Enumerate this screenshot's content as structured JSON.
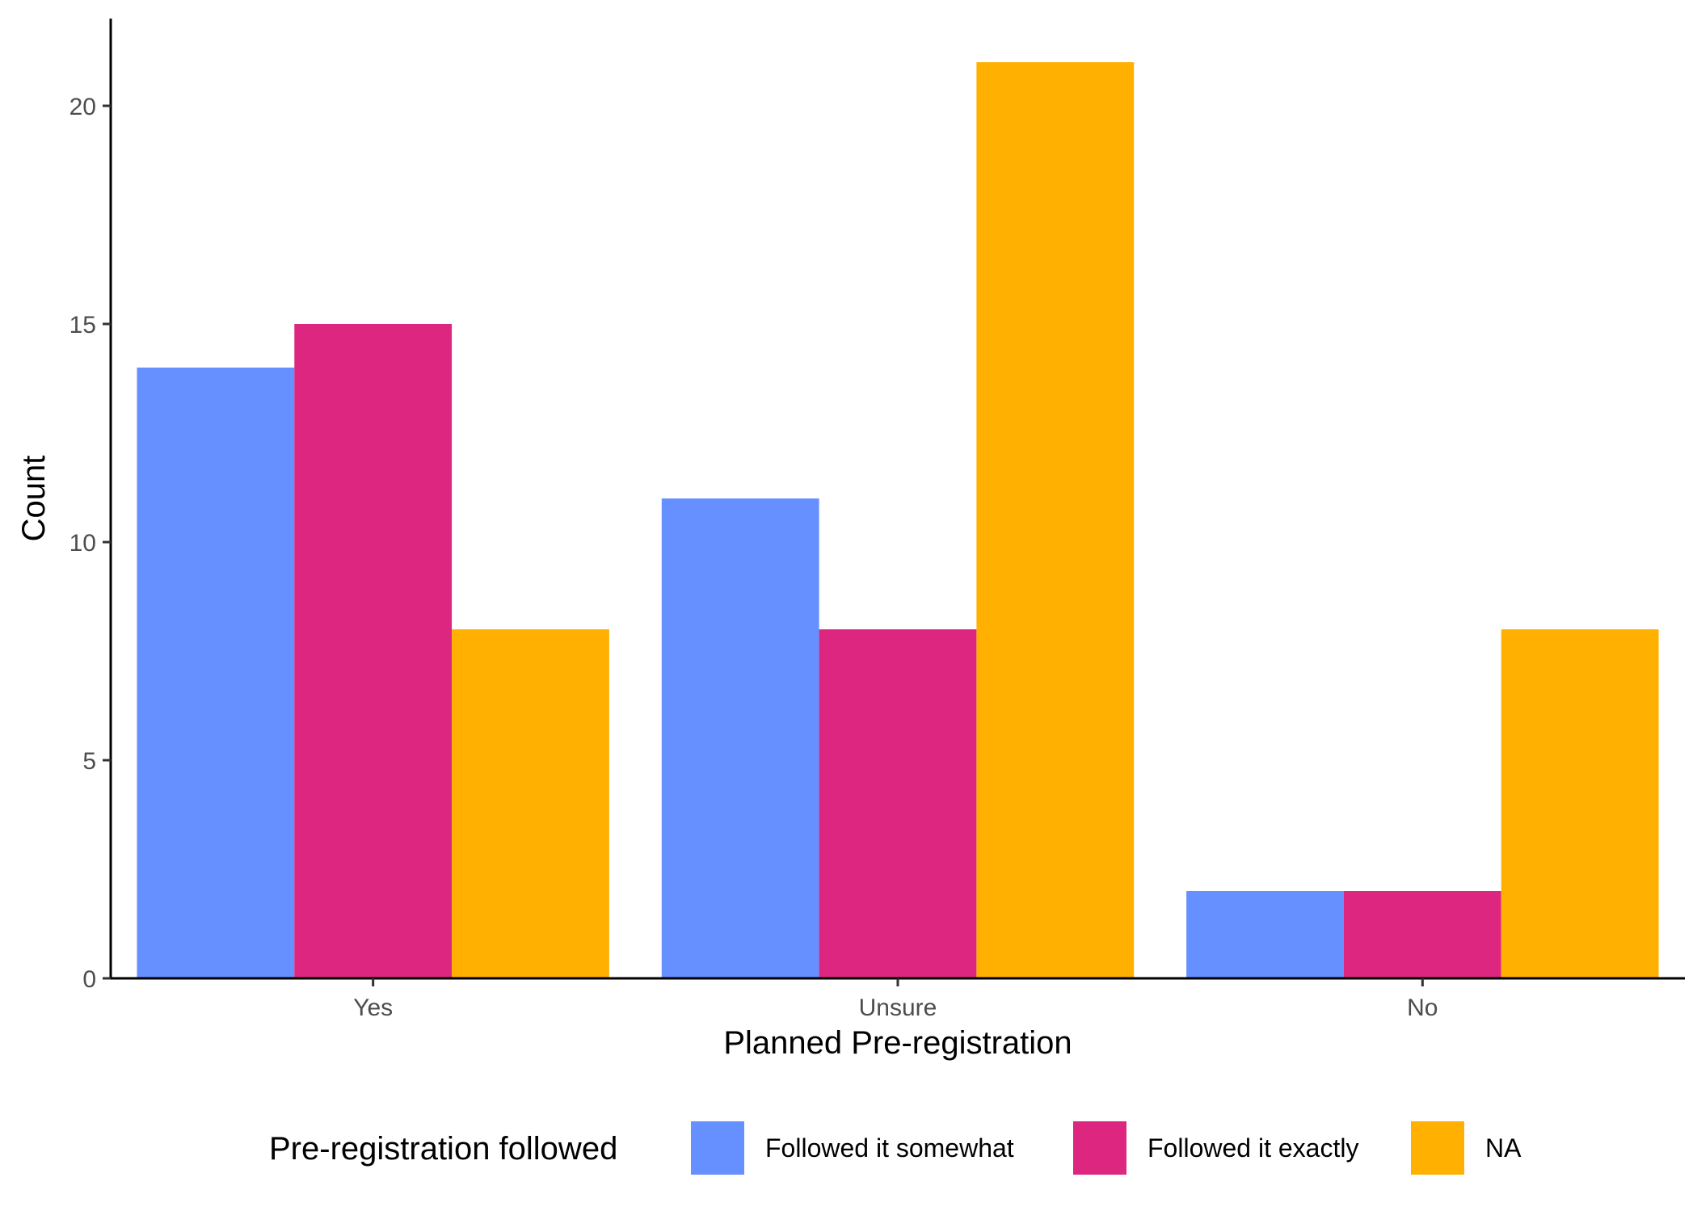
{
  "chart_data": {
    "type": "bar",
    "title": "",
    "xlabel": "Planned Pre-registration",
    "ylabel": "Count",
    "categories": [
      "Yes",
      "Unsure",
      "No"
    ],
    "series": [
      {
        "name": "Followed it somewhat",
        "color": "#668FFF",
        "values": [
          14,
          11,
          2
        ]
      },
      {
        "name": "Followed it exactly",
        "color": "#DC267F",
        "values": [
          15,
          8,
          2
        ]
      },
      {
        "name": "NA",
        "color": "#FFB000",
        "values": [
          8,
          21,
          8
        ]
      }
    ],
    "ylim": [
      0,
      22
    ],
    "yticks": [
      0,
      5,
      10,
      15,
      20
    ],
    "grid": false,
    "legend": {
      "title": "Pre-registration followed",
      "placement": "bottom"
    }
  }
}
